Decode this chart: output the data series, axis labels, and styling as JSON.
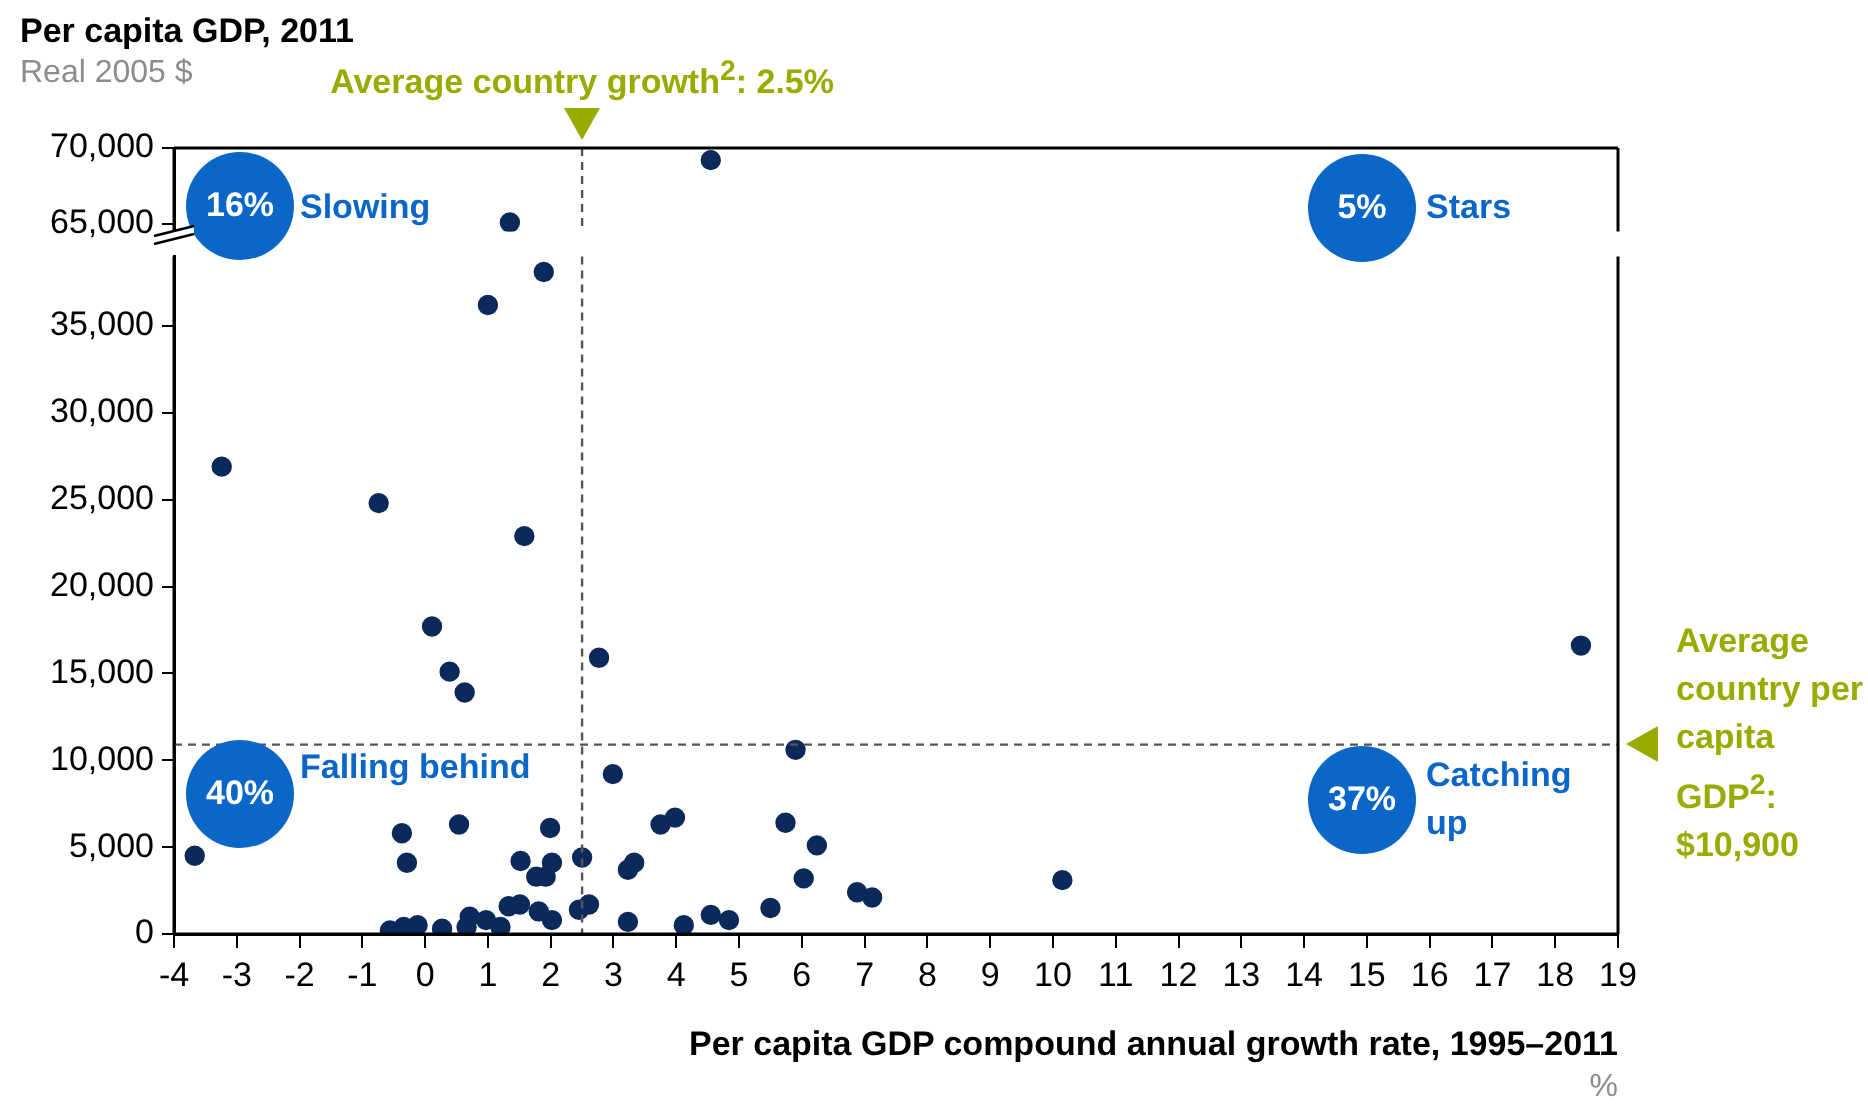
{
  "chart_data": [
    {
      "type": "scatter",
      "title": "Per capita GDP, 2011",
      "subtitle": "Real 2005 $",
      "x": [
        4.55,
        1.35
      ],
      "values": [
        69200,
        65100
      ],
      "color": "#0b2a5b",
      "marker": "circle",
      "legend": false,
      "grid": false,
      "tick_labels": "y",
      "xlim": [
        -4,
        19
      ],
      "ylim": [
        64500,
        70000
      ],
      "yticks": [
        {
          "value": 65000,
          "label": "65,000"
        },
        {
          "value": 70000,
          "label": "70,000"
        }
      ],
      "ref_lines": [
        {
          "axis": "x",
          "value": 2.5,
          "label": "Average country growth$^{2}$: 2.5%",
          "color": "#555555",
          "line_style": "dashed"
        }
      ],
      "annotations": [
        "16%",
        "Slowing",
        "5%",
        "Stars"
      ]
    },
    {
      "type": "scatter",
      "xlabel": "Per capita GDP compound annual growth rate, 1995–2011",
      "x": [
        1.89,
        1.0,
        -3.24,
        -0.74,
        1.58,
        0.11,
        0.39,
        0.63,
        2.77,
        2.99,
        -3.67,
        -0.37,
        -0.29,
        0.54,
        1.99,
        1.52,
        2.02,
        1.77,
        1.92,
        2.5,
        1.33,
        1.51,
        1.81,
        2.02,
        2.45,
        2.61,
        -0.56,
        -0.34,
        -0.12,
        0.27,
        0.66,
        0.71,
        0.97,
        1.2,
        3.23,
        3.33,
        3.23,
        3.75,
        3.98,
        4.12,
        4.55,
        4.84,
        5.5,
        5.74,
        5.9,
        6.24,
        6.03,
        6.88,
        7.12,
        10.15,
        18.41
      ],
      "values": [
        38100,
        36200,
        26900,
        24800,
        22900,
        17700,
        15100,
        13900,
        15900,
        9200,
        4500,
        5800,
        4100,
        6300,
        6100,
        4200,
        4100,
        3300,
        3300,
        4400,
        1600,
        1700,
        1300,
        800,
        1400,
        1700,
        200,
        400,
        500,
        300,
        400,
        1000,
        800,
        400,
        3700,
        4100,
        700,
        6300,
        6700,
        500,
        1100,
        800,
        1500,
        6400,
        10600,
        5100,
        3200,
        2400,
        2100,
        3100,
        16600
      ],
      "color": "#0b2a5b",
      "marker": "circle",
      "legend": false,
      "grid": false,
      "xlim": [
        -4,
        19
      ],
      "xticks": [
        -4,
        -3,
        -2,
        -1,
        0,
        1,
        2,
        3,
        4,
        5,
        6,
        7,
        8,
        9,
        10,
        11,
        12,
        13,
        14,
        15,
        16,
        17,
        18,
        19
      ],
      "ylim": [
        0,
        39000
      ],
      "yticks": [
        {
          "value": 0,
          "label": "0"
        },
        {
          "value": 5000,
          "label": "5,000"
        },
        {
          "value": 10000,
          "label": "10,000"
        },
        {
          "value": 15000,
          "label": "15,000"
        },
        {
          "value": 20000,
          "label": "20,000"
        },
        {
          "value": 25000,
          "label": "25,000"
        },
        {
          "value": 30000,
          "label": "30,000"
        },
        {
          "value": 35000,
          "label": "35,000"
        }
      ],
      "ref_lines": [
        {
          "axis": "x",
          "value": 2.5,
          "color": "#555555",
          "line_style": "dashed"
        },
        {
          "axis": "y",
          "value": 10900,
          "label": "Average country per capita GDP$^{2}$: $10,900",
          "color": "#555555",
          "line_style": "dashed"
        }
      ],
      "annotations": [
        "40%",
        "Falling behind",
        "37%",
        "Catching up",
        "%"
      ]
    }
  ]
}
